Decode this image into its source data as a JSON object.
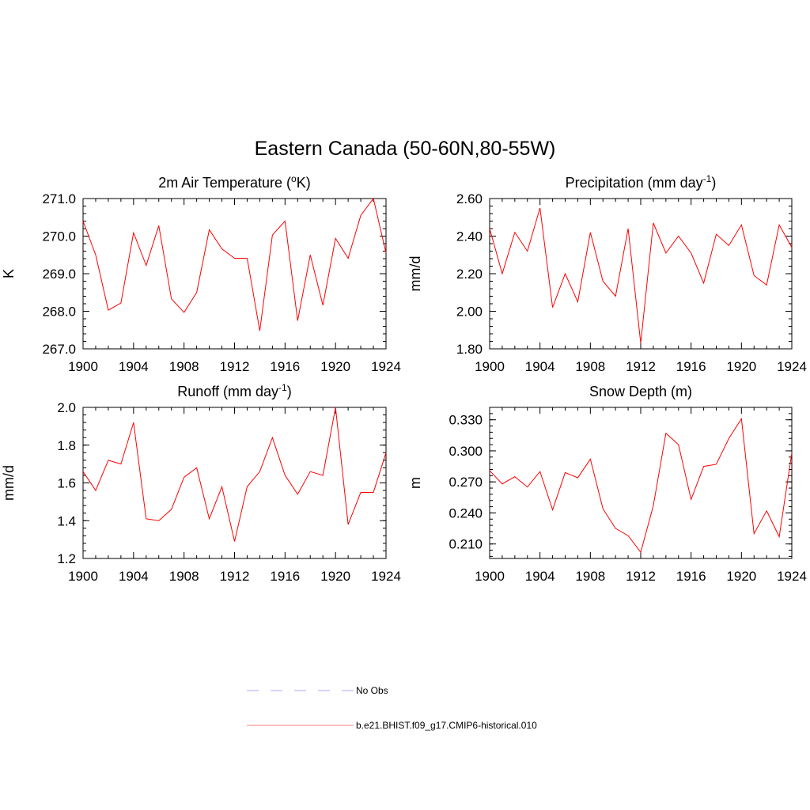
{
  "figure": {
    "title": "Eastern Canada (50-60N,80-55W)",
    "legend": {
      "placement": "bottom-center",
      "entries": [
        {
          "label": "No Obs",
          "color": "#a9a9ff",
          "dash": "dashed"
        },
        {
          "label": "b.e21.BHIST.f09_g17.CMIP6-historical.010",
          "color": "#ff7f7f",
          "dash": "solid"
        }
      ]
    }
  },
  "chart_data": [
    {
      "type": "line",
      "title": "2m Air Temperature (",
      "title_sup": "o",
      "title_after": "K)",
      "ylabel": "K",
      "xlim": [
        1900,
        1924
      ],
      "ylim": [
        267.0,
        271.0
      ],
      "yticks": [
        "267.0",
        "268.0",
        "269.0",
        "270.0",
        "271.0"
      ],
      "ymajor_step": 1.0,
      "yminor_step": 0.2,
      "xticks": [
        "1900",
        "1904",
        "1908",
        "1912",
        "1916",
        "1920",
        "1924"
      ],
      "grid": false,
      "series": [
        {
          "color": "#ff0000",
          "x": [
            1900,
            1901,
            1902,
            1903,
            1904,
            1905,
            1906,
            1907,
            1908,
            1909,
            1910,
            1911,
            1912,
            1913,
            1914,
            1915,
            1916,
            1917,
            1918,
            1919,
            1920,
            1921,
            1922,
            1923,
            1924
          ],
          "values": [
            270.4,
            269.5,
            268.03,
            268.22,
            270.09,
            269.22,
            270.28,
            268.33,
            267.97,
            268.5,
            270.17,
            269.66,
            269.41,
            269.41,
            267.48,
            270.03,
            270.4,
            267.75,
            269.5,
            268.16,
            269.94,
            269.41,
            270.55,
            271.0,
            269.55
          ]
        }
      ]
    },
    {
      "type": "line",
      "title": "Precipitation (mm day",
      "title_sup": "-1",
      "title_after": ")",
      "ylabel": "mm/d",
      "xlim": [
        1900,
        1924
      ],
      "ylim": [
        1.8,
        2.6
      ],
      "yticks": [
        "1.80",
        "2.00",
        "2.20",
        "2.40",
        "2.60"
      ],
      "ymajor_step": 0.2,
      "yminor_step": 0.04,
      "xticks": [
        "1900",
        "1904",
        "1908",
        "1912",
        "1916",
        "1920",
        "1924"
      ],
      "grid": false,
      "series": [
        {
          "color": "#ff0000",
          "x": [
            1900,
            1901,
            1902,
            1903,
            1904,
            1905,
            1906,
            1907,
            1908,
            1909,
            1910,
            1911,
            1912,
            1913,
            1914,
            1915,
            1916,
            1917,
            1918,
            1919,
            1920,
            1921,
            1922,
            1923,
            1924
          ],
          "values": [
            2.44,
            2.2,
            2.42,
            2.32,
            2.55,
            2.02,
            2.2,
            2.05,
            2.42,
            2.16,
            2.08,
            2.44,
            1.83,
            2.47,
            2.31,
            2.4,
            2.31,
            2.15,
            2.41,
            2.35,
            2.46,
            2.19,
            2.14,
            2.46,
            2.34
          ]
        }
      ]
    },
    {
      "type": "line",
      "title": "Runoff (mm day",
      "title_sup": "-1",
      "title_after": ")",
      "ylabel": "mm/d",
      "xlim": [
        1900,
        1924
      ],
      "ylim": [
        1.2,
        2.0
      ],
      "yticks": [
        "1.2",
        "1.4",
        "1.6",
        "1.8",
        "2.0"
      ],
      "ymajor_step": 0.2,
      "yminor_step": 0.04,
      "xticks": [
        "1900",
        "1904",
        "1908",
        "1912",
        "1916",
        "1920",
        "1924"
      ],
      "grid": false,
      "series": [
        {
          "color": "#ff0000",
          "x": [
            1900,
            1901,
            1902,
            1903,
            1904,
            1905,
            1906,
            1907,
            1908,
            1909,
            1910,
            1911,
            1912,
            1913,
            1914,
            1915,
            1916,
            1917,
            1918,
            1919,
            1920,
            1921,
            1922,
            1923,
            1924
          ],
          "values": [
            1.66,
            1.56,
            1.72,
            1.7,
            1.92,
            1.41,
            1.4,
            1.46,
            1.63,
            1.68,
            1.41,
            1.58,
            1.29,
            1.58,
            1.66,
            1.84,
            1.64,
            1.54,
            1.66,
            1.64,
            2.0,
            1.38,
            1.55,
            1.55,
            1.76
          ]
        }
      ]
    },
    {
      "type": "line",
      "title": "Snow Depth (m)",
      "title_sup": "",
      "title_after": "",
      "ylabel": "m",
      "xlim": [
        1900,
        1924
      ],
      "ylim": [
        0.196,
        0.342
      ],
      "yticks": [
        "0.210",
        "0.240",
        "0.270",
        "0.300",
        "0.330"
      ],
      "ytick_values": [
        0.21,
        0.24,
        0.27,
        0.3,
        0.33
      ],
      "ymajor_step": 0.03,
      "yminor_step": 0.006,
      "xticks": [
        "1900",
        "1904",
        "1908",
        "1912",
        "1916",
        "1920",
        "1924"
      ],
      "grid": false,
      "series": [
        {
          "color": "#ff0000",
          "x": [
            1900,
            1901,
            1902,
            1903,
            1904,
            1905,
            1906,
            1907,
            1908,
            1909,
            1910,
            1911,
            1912,
            1913,
            1914,
            1915,
            1916,
            1917,
            1918,
            1919,
            1920,
            1921,
            1922,
            1923,
            1924
          ],
          "values": [
            0.281,
            0.268,
            0.275,
            0.265,
            0.28,
            0.243,
            0.279,
            0.274,
            0.292,
            0.244,
            0.225,
            0.218,
            0.202,
            0.247,
            0.317,
            0.306,
            0.253,
            0.285,
            0.287,
            0.312,
            0.331,
            0.22,
            0.242,
            0.217,
            0.298
          ]
        }
      ]
    }
  ]
}
